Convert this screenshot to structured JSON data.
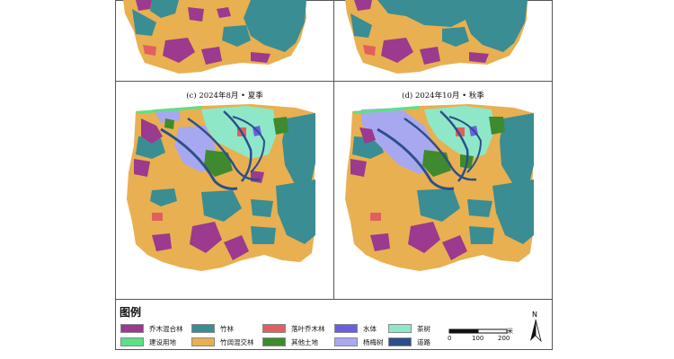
{
  "panels": {
    "c": {
      "title": "(c) 2024年8月 • 夏季"
    },
    "d": {
      "title": "(d) 2024年10月 • 秋季"
    }
  },
  "legend": {
    "title": "图例",
    "items": [
      {
        "label": "乔木混合林",
        "color": "#9b3a8e"
      },
      {
        "label": "竹林",
        "color": "#3a8d93"
      },
      {
        "label": "落叶乔木林",
        "color": "#e06060"
      },
      {
        "label": "水体",
        "color": "#6a5fe0"
      },
      {
        "label": "茶树",
        "color": "#8ee8c8"
      },
      {
        "label": "建设用地",
        "color": "#5ce088"
      },
      {
        "label": "竹阔混交林",
        "color": "#e8b050"
      },
      {
        "label": "其他土地",
        "color": "#3f8a2e"
      },
      {
        "label": "杨梅树",
        "color": "#a8a8f0"
      },
      {
        "label": "道路",
        "color": "#2c4f8a"
      }
    ]
  },
  "scale": {
    "labels": [
      "0",
      "100",
      "200"
    ],
    "unit": "米"
  },
  "north": {
    "label": "N"
  },
  "colors": {
    "mixed_forest": "#9b3a8e",
    "bamboo": "#3a8d93",
    "deciduous": "#e06060",
    "water": "#6a5fe0",
    "tea": "#8ee8c8",
    "construction": "#5ce088",
    "bamboo_broadleaf": "#e8b050",
    "other_land": "#3f8a2e",
    "bayberry": "#a8a8f0",
    "road": "#2c4f8a"
  }
}
